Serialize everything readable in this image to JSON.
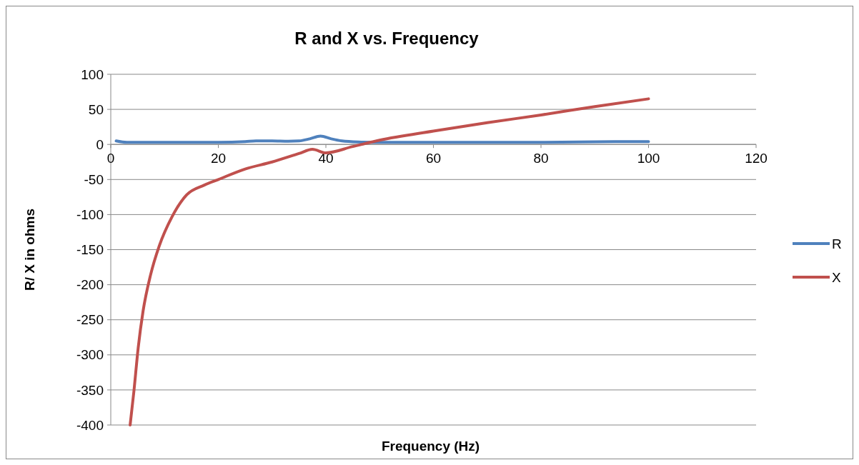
{
  "chart_data": {
    "type": "line",
    "title": "R and X vs. Frequency",
    "xlabel": "Frequency (Hz)",
    "ylabel": "R/ X in ohms",
    "xlim": [
      0,
      120
    ],
    "xticks": [
      0,
      20,
      40,
      60,
      80,
      100,
      120
    ],
    "ylim": [
      -400,
      100
    ],
    "yticks": [
      -400,
      -350,
      -300,
      -250,
      -200,
      -150,
      -100,
      -50,
      0,
      50,
      100
    ],
    "grid": "y",
    "legend": "right",
    "marker": "none",
    "line_style": "solid",
    "series": [
      {
        "name": "R",
        "color": "#4f81bd",
        "x": [
          1,
          3,
          10,
          20,
          25,
          27,
          30,
          33,
          35,
          37,
          39,
          41,
          43,
          46,
          50,
          60,
          80,
          94,
          100
        ],
        "values": [
          5,
          3,
          3,
          3,
          4,
          5,
          5,
          4.5,
          5,
          8,
          12,
          8,
          5,
          3.5,
          3,
          3,
          3,
          4,
          4
        ]
      },
      {
        "name": "X",
        "color": "#c0504d",
        "x": [
          3.6,
          4.3,
          5.1,
          6,
          7.4,
          9,
          11.4,
          14.1,
          17.4,
          20,
          25,
          30,
          35,
          37.5,
          40,
          45,
          50,
          60,
          70,
          80,
          90,
          100
        ],
        "values": [
          -400,
          -352,
          -290,
          -238,
          -186,
          -145,
          -103,
          -72,
          -58,
          -50,
          -35,
          -25,
          -13,
          -7,
          -12,
          -3,
          6,
          19,
          31,
          42,
          54,
          65
        ]
      }
    ]
  }
}
